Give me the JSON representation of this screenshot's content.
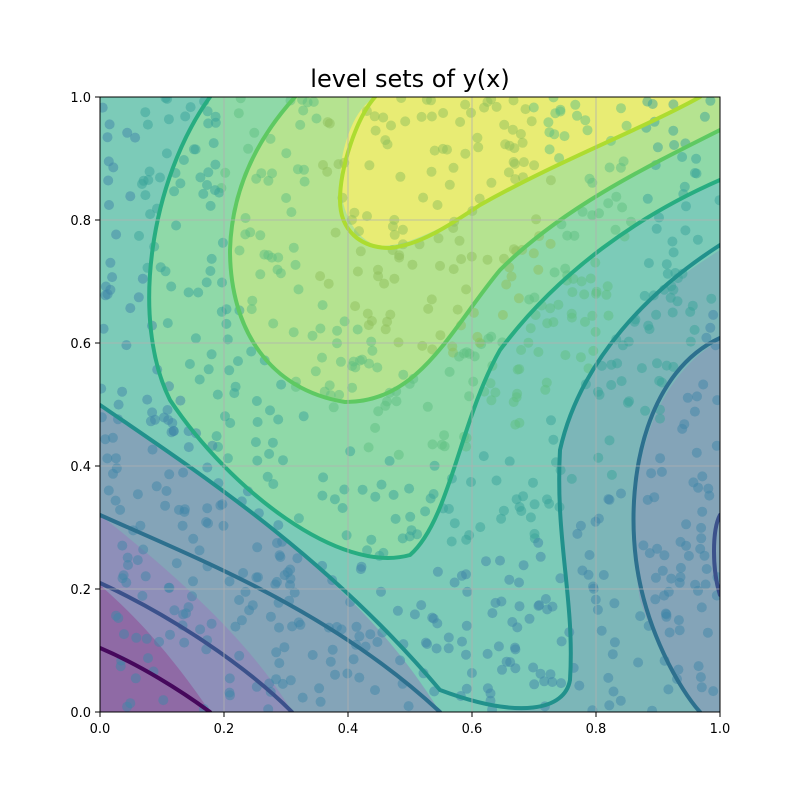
{
  "chart_data": {
    "type": "contour",
    "title": "level sets of y(x)",
    "xlabel": "",
    "ylabel": "",
    "xlim": [
      0.0,
      1.0
    ],
    "ylim": [
      0.0,
      1.0
    ],
    "grid": true,
    "colormap": "viridis",
    "xticks": [
      "0.0",
      "0.2",
      "0.4",
      "0.6",
      "0.8",
      "1.0"
    ],
    "yticks": [
      "0.0",
      "0.2",
      "0.4",
      "0.6",
      "0.8",
      "1.0"
    ],
    "scatter": {
      "count_estimate": 900,
      "distribution": "uniform random in [0,1]x[0,1]",
      "marker": "circle",
      "alpha": 0.5,
      "color_by": "level"
    },
    "levels": [
      {
        "index": 0,
        "line_color": "#46085c",
        "fill_color": "#8f6aa5"
      },
      {
        "index": 1,
        "line_color": "#3b518b",
        "fill_color": "#8e8fb9"
      },
      {
        "index": 2,
        "line_color": "#2d708e",
        "fill_color": "#84a4b8"
      },
      {
        "index": 3,
        "line_color": "#21918c",
        "fill_color": "#7cb6b8"
      },
      {
        "index": 4,
        "line_color": "#27ad81",
        "fill_color": "#7ccbb8"
      },
      {
        "index": 5,
        "line_color": "#5ec962",
        "fill_color": "#8fd9a8"
      },
      {
        "index": 6,
        "line_color": "#addc30",
        "fill_color": "#b5e390"
      },
      {
        "index": 7,
        "line_color": "#fde725",
        "fill_color": "#e8ec74"
      }
    ]
  }
}
